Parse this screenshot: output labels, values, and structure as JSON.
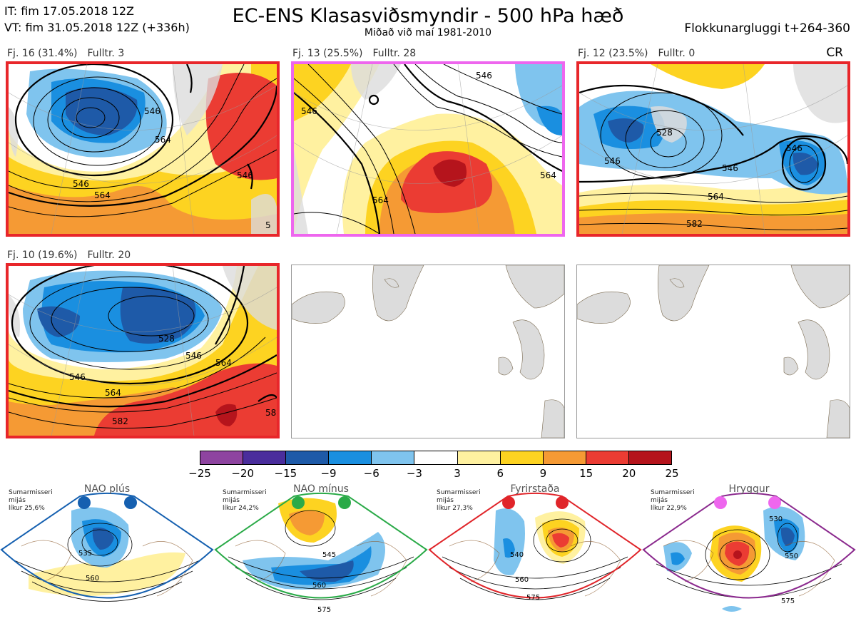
{
  "header": {
    "it": "IT: fim 17.05.2018 12Z",
    "vt": "VT: fim 31.05.2018 12Z  (+336h)",
    "title": "EC-ENS Klasasviðsmyndir - 500 hPa hæð",
    "subtitle": "Miðað við maí 1981-2010",
    "window": "Flokkunargluggi t+264-360",
    "cr": "CR"
  },
  "clusters": [
    {
      "label": "Fj. 16 (31.4%)",
      "rep": "Fulltr.  3",
      "border_color": "#e8262a",
      "contours": [
        "546",
        "564",
        "546",
        "564",
        "546",
        "5"
      ]
    },
    {
      "label": "Fj. 13 (25.5%)",
      "rep": "Fulltr. 28",
      "border_color": "#ee66ee",
      "contours": [
        "546",
        "564",
        "546",
        "564"
      ]
    },
    {
      "label": "Fj. 12 (23.5%)",
      "rep": "Fulltr.  0",
      "border_color": "#e8262a",
      "contours": [
        "528",
        "546",
        "564",
        "582",
        "546",
        "546"
      ]
    },
    {
      "label": "Fj. 10 (19.6%)",
      "rep": "Fulltr. 20",
      "border_color": "#e8262a",
      "contours": [
        "528",
        "546",
        "546",
        "564",
        "564",
        "582",
        "58"
      ]
    }
  ],
  "colorbar": {
    "colors": [
      "#8e44a0",
      "#4a2d9c",
      "#1e5aa8",
      "#1a8fe0",
      "#7fc4ee",
      "#ffffff",
      "#fff1a0",
      "#fdd321",
      "#f59a34",
      "#eb3c33",
      "#b5141c"
    ],
    "ticks": [
      "−25",
      "−20",
      "−15",
      "−9",
      "−6",
      "−3",
      "3",
      "6",
      "9",
      "15",
      "20",
      "25"
    ]
  },
  "regimes": [
    {
      "name": "NAO plús",
      "note": [
        "Sumarmisseri",
        "mijás",
        "líkur 25,6%"
      ],
      "color": "#1560b0",
      "contours": [
        "535",
        "560"
      ]
    },
    {
      "name": "NAO mínus",
      "note": [
        "Sumarmisseri",
        "mijás",
        "líkur 24,2%"
      ],
      "color": "#2aaa48",
      "contours": [
        "545",
        "560",
        "575"
      ]
    },
    {
      "name": "Fyrirstaða",
      "note": [
        "Sumarmisseri",
        "mijás",
        "líkur 27,3%"
      ],
      "color": "#e0252a",
      "contours": [
        "540",
        "560",
        "575"
      ]
    },
    {
      "name": "Hryggur",
      "note": [
        "Sumarmisseri",
        "mijás",
        "líkur 22,9%"
      ],
      "color": "#8b2a8e",
      "contours": [
        "530",
        "550",
        "575"
      ]
    }
  ]
}
